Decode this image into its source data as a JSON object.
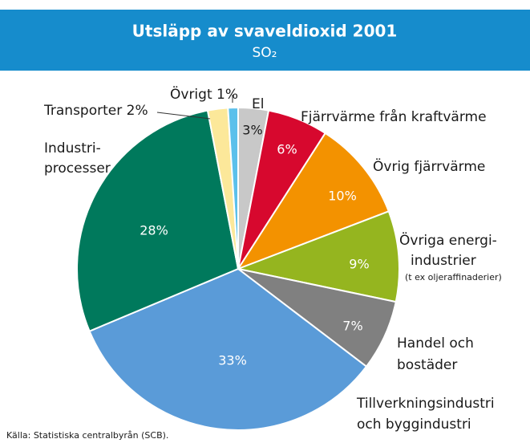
{
  "chart_data": {
    "type": "pie",
    "title": "Utsläpp av svaveldioxid 2001",
    "subtitle": "SO₂",
    "categories": [
      [
        "El"
      ],
      [
        "Fjärrvärme från kraftvärme"
      ],
      [
        "Övrig fjärrvärme"
      ],
      [
        "Övriga energi-",
        "industrier"
      ],
      [
        "Handel och",
        "bostäder"
      ],
      [
        "Tillverkningsindustri",
        "och byggindustri"
      ],
      [
        "Industri-",
        "processer"
      ],
      [
        "Transporter"
      ],
      [
        "Övrigt"
      ]
    ],
    "values": [
      3,
      6,
      10,
      9,
      7,
      33,
      28,
      2,
      1
    ],
    "value_labels": [
      "3%",
      "6%",
      "10%",
      "9%",
      "7%",
      "33%",
      "28%",
      "2%",
      "1%"
    ],
    "colors": [
      "#c8c8c8",
      "#d7082e",
      "#f39200",
      "#95b51f",
      "#808080",
      "#5a9bd8",
      "#00795c",
      "#fce89a",
      "#5bc0eb"
    ],
    "note": "(t ex oljeraffinaderier)",
    "source": "Källa: Statistiska centralbyrån (SCB)."
  }
}
